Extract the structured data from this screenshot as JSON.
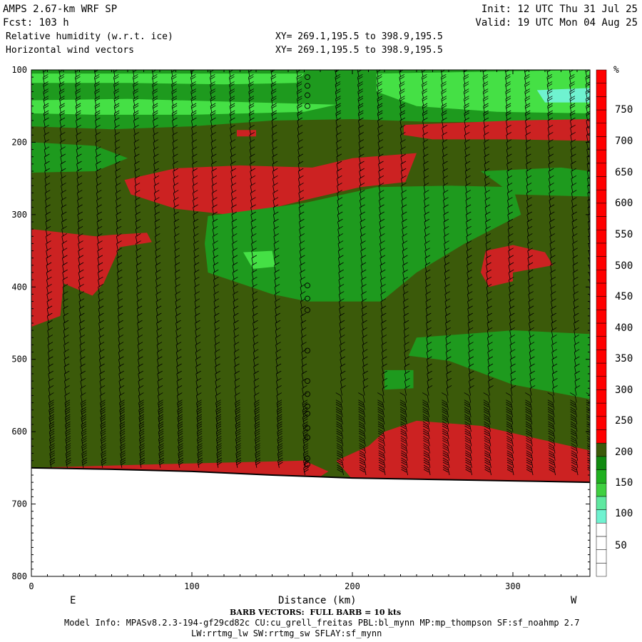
{
  "header": {
    "model": "AMPS 2.67-km WRF SP",
    "fcst": "Fcst: 103 h",
    "init": "Init: 12 UTC Thu 31 Jul 25",
    "valid": "Valid: 19 UTC Mon 04 Aug 25",
    "field1": "Relative humidity (w.r.t. ice)",
    "field2": "Horizontal wind vectors",
    "xy1": "XY= 269.1,195.5 to 398.9,195.5",
    "xy2": "XY= 269.1,195.5 to 398.9,195.5"
  },
  "footer": {
    "barb": "BARB VECTORS:  FULL BARB = 10 kts",
    "model_info": "Model Info: MPASv8.2.3-194-gf29cd82c CU:cu_grell_freitas PBL:bl_mynn MP:mp_thompson SF:sf_noahmp 2.7",
    "model_info2": "LW:rrtmg_lw SW:rrtmg_sw SFLAY:sf_mynn"
  },
  "colors": {
    "dry_olive": "#3b5a0a",
    "moist_green": "#1e9a1e",
    "very_moist_green": "#45e045",
    "cyan": "#6ff2d0",
    "red": "#cc2222",
    "bright_red": "#ff0000",
    "ground": "#ffffff",
    "barb": "#000000"
  },
  "chart_data": {
    "type": "heatmap",
    "title": "Relative humidity (w.r.t. ice)",
    "xlabel": "Distance (km)",
    "ylabel": "",
    "xlim": [
      0,
      348
    ],
    "ylim": [
      800,
      100
    ],
    "x_ticks": [
      "0",
      "100",
      "200",
      "300"
    ],
    "y_ticks": [
      "100",
      "200",
      "300",
      "400",
      "500",
      "600",
      "700",
      "800"
    ],
    "x_dir_left": "E",
    "x_dir_right": "W",
    "colorbar_unit": "%",
    "colorbar_labels": [
      "50",
      "100",
      "150",
      "200",
      "250",
      "300",
      "350",
      "400",
      "450",
      "500",
      "550",
      "600",
      "650",
      "700",
      "750"
    ],
    "colorbar_colors": [
      "#ffffff",
      "#ffffff",
      "#ffffff",
      "#ffffff",
      "#6ff2d0",
      "#5fe8a0",
      "#3fd040",
      "#20b020",
      "#108a10",
      "#3b5a0a",
      "#ff0000",
      "#ff0000",
      "#ff0000",
      "#ff0000",
      "#ff0000",
      "#ff0000",
      "#ff0000",
      "#ff0000",
      "#ff0000",
      "#ff0000",
      "#ff0000",
      "#ff0000",
      "#ff0000",
      "#ff0000",
      "#ff0000",
      "#ff0000",
      "#ff0000",
      "#ff0000",
      "#ff0000",
      "#ff0000",
      "#ff0000",
      "#ff0000",
      "#ff0000",
      "#ff0000",
      "#ff0000",
      "#ff0000",
      "#ff0000",
      "#ff0000"
    ],
    "surface_pressure": [
      [
        0,
        650
      ],
      [
        50,
        652
      ],
      [
        100,
        655
      ],
      [
        150,
        660
      ],
      [
        175,
        662
      ],
      [
        200,
        664
      ],
      [
        250,
        666
      ],
      [
        300,
        668
      ],
      [
        348,
        670
      ]
    ],
    "regions": [
      {
        "name": "upper-green-band",
        "color": "#1e9a1e",
        "points": [
          [
            0,
            100
          ],
          [
            348,
            100
          ],
          [
            348,
            180
          ],
          [
            300,
            172
          ],
          [
            250,
            172
          ],
          [
            200,
            168
          ],
          [
            150,
            170
          ],
          [
            100,
            178
          ],
          [
            50,
            182
          ],
          [
            0,
            178
          ]
        ]
      },
      {
        "name": "upper-bright-band-1",
        "color": "#45e045",
        "points": [
          [
            0,
            105
          ],
          [
            170,
            105
          ],
          [
            165,
            118
          ],
          [
            120,
            120
          ],
          [
            60,
            118
          ],
          [
            0,
            118
          ]
        ]
      },
      {
        "name": "upper-bright-band-2",
        "color": "#45e045",
        "points": [
          [
            0,
            142
          ],
          [
            60,
            140
          ],
          [
            140,
            145
          ],
          [
            190,
            148
          ],
          [
            170,
            158
          ],
          [
            100,
            162
          ],
          [
            40,
            162
          ],
          [
            0,
            160
          ]
        ]
      },
      {
        "name": "upper-right-bright",
        "color": "#45e045",
        "points": [
          [
            215,
            105
          ],
          [
            348,
            100
          ],
          [
            348,
            160
          ],
          [
            290,
            158
          ],
          [
            240,
            150
          ],
          [
            215,
            130
          ]
        ]
      },
      {
        "name": "upper-right-cyan",
        "color": "#6ff2d0",
        "points": [
          [
            315,
            128
          ],
          [
            348,
            125
          ],
          [
            348,
            145
          ],
          [
            320,
            145
          ]
        ]
      },
      {
        "name": "left-green-patch",
        "color": "#1e9a1e",
        "points": [
          [
            0,
            200
          ],
          [
            40,
            205
          ],
          [
            60,
            222
          ],
          [
            40,
            240
          ],
          [
            0,
            242
          ]
        ]
      },
      {
        "name": "red-200-right",
        "color": "#cc2222",
        "points": [
          [
            232,
            176
          ],
          [
            300,
            170
          ],
          [
            348,
            168
          ],
          [
            348,
            198
          ],
          [
            300,
            196
          ],
          [
            250,
            196
          ],
          [
            232,
            190
          ]
        ]
      },
      {
        "name": "red-top-small",
        "color": "#cc2222",
        "points": [
          [
            128,
            183
          ],
          [
            140,
            183
          ],
          [
            140,
            192
          ],
          [
            128,
            192
          ]
        ]
      },
      {
        "name": "red-250-band",
        "color": "#cc2222",
        "points": [
          [
            58,
            252
          ],
          [
            90,
            236
          ],
          [
            130,
            232
          ],
          [
            175,
            235
          ],
          [
            200,
            222
          ],
          [
            240,
            215
          ],
          [
            233,
            255
          ],
          [
            205,
            262
          ],
          [
            170,
            280
          ],
          [
            130,
            302
          ],
          [
            90,
            292
          ],
          [
            62,
            272
          ]
        ]
      },
      {
        "name": "green-mid",
        "color": "#1e9a1e",
        "points": [
          [
            110,
            302
          ],
          [
            170,
            284
          ],
          [
            215,
            262
          ],
          [
            262,
            260
          ],
          [
            300,
            262
          ],
          [
            305,
            300
          ],
          [
            270,
            340
          ],
          [
            240,
            380
          ],
          [
            218,
            420
          ],
          [
            172,
            420
          ],
          [
            150,
            410
          ],
          [
            110,
            380
          ],
          [
            108,
            340
          ]
        ]
      },
      {
        "name": "green-mid-bright",
        "color": "#45e045",
        "points": [
          [
            132,
            352
          ],
          [
            150,
            350
          ],
          [
            152,
            372
          ],
          [
            138,
            375
          ]
        ]
      },
      {
        "name": "green-right-upper",
        "color": "#1e9a1e",
        "points": [
          [
            280,
            240
          ],
          [
            330,
            235
          ],
          [
            348,
            240
          ],
          [
            348,
            275
          ],
          [
            300,
            272
          ]
        ]
      },
      {
        "name": "red-left",
        "color": "#cc2222",
        "points": [
          [
            0,
            320
          ],
          [
            40,
            330
          ],
          [
            50,
            328
          ],
          [
            72,
            325
          ],
          [
            75,
            338
          ],
          [
            55,
            345
          ],
          [
            45,
            395
          ],
          [
            38,
            412
          ],
          [
            20,
            395
          ],
          [
            18,
            440
          ],
          [
            0,
            455
          ]
        ]
      },
      {
        "name": "red-right",
        "color": "#cc2222",
        "points": [
          [
            283,
            350
          ],
          [
            300,
            342
          ],
          [
            320,
            352
          ],
          [
            325,
            370
          ],
          [
            300,
            380
          ],
          [
            300,
            392
          ],
          [
            285,
            400
          ],
          [
            280,
            380
          ]
        ]
      },
      {
        "name": "green-right-lower",
        "color": "#1e9a1e",
        "points": [
          [
            240,
            470
          ],
          [
            300,
            460
          ],
          [
            348,
            465
          ],
          [
            348,
            555
          ],
          [
            300,
            535
          ],
          [
            260,
            502
          ],
          [
            235,
            495
          ]
        ]
      },
      {
        "name": "green-small-520",
        "color": "#1e9a1e",
        "points": [
          [
            220,
            515
          ],
          [
            238,
            515
          ],
          [
            238,
            540
          ],
          [
            220,
            542
          ]
        ]
      },
      {
        "name": "red-lower",
        "color": "#cc2222",
        "points": [
          [
            210,
            620
          ],
          [
            220,
            600
          ],
          [
            240,
            585
          ],
          [
            280,
            592
          ],
          [
            348,
            626
          ],
          [
            348,
            672
          ],
          [
            200,
            666
          ],
          [
            190,
            640
          ]
        ]
      },
      {
        "name": "red-bottom-left",
        "color": "#cc2222",
        "points": [
          [
            0,
            650
          ],
          [
            80,
            645
          ],
          [
            170,
            640
          ],
          [
            185,
            655
          ],
          [
            180,
            662
          ],
          [
            100,
            662
          ],
          [
            0,
            656
          ]
        ]
      }
    ],
    "calm_circles": [
      [
        172,
        110
      ],
      [
        172,
        122
      ],
      [
        172,
        135
      ],
      [
        172,
        150
      ],
      [
        172,
        398
      ],
      [
        172,
        416
      ],
      [
        172,
        432
      ],
      [
        172,
        488
      ],
      [
        172,
        530
      ],
      [
        172,
        548
      ],
      [
        172,
        565
      ],
      [
        172,
        575
      ],
      [
        172,
        595
      ],
      [
        172,
        608
      ],
      [
        172,
        637
      ],
      [
        172,
        645
      ]
    ],
    "barb_columns_km": [
      8,
      18,
      28,
      40,
      52,
      64,
      76,
      88,
      100,
      112,
      124,
      136,
      150,
      166,
      190,
      204,
      216,
      230,
      244,
      256,
      270,
      282,
      296,
      308,
      322,
      336,
      346
    ]
  }
}
